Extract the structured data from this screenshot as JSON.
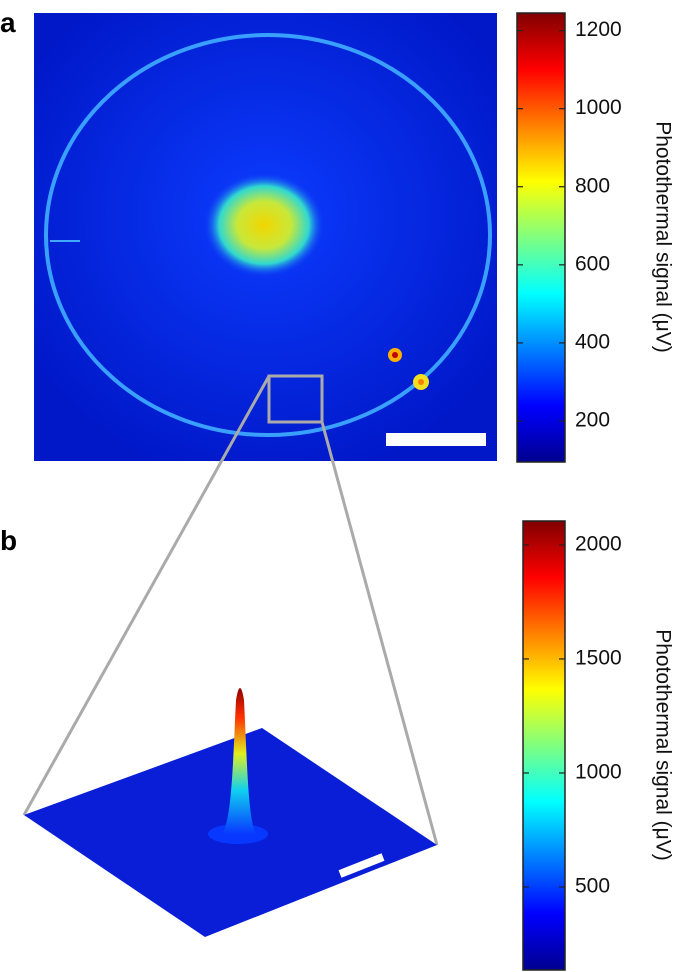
{
  "panels": [
    {
      "label": "a",
      "colorbar": {
        "label": "Photothermal signal (μV)",
        "lim": [
          95,
          1245
        ],
        "ticks": [
          200,
          400,
          600,
          800,
          1000,
          1200
        ]
      }
    },
    {
      "label": "b",
      "colorbar": {
        "label": "Photothermal signal (μV)",
        "lim": [
          136,
          2105
        ],
        "ticks": [
          500,
          1000,
          1500,
          2000
        ]
      }
    }
  ]
}
